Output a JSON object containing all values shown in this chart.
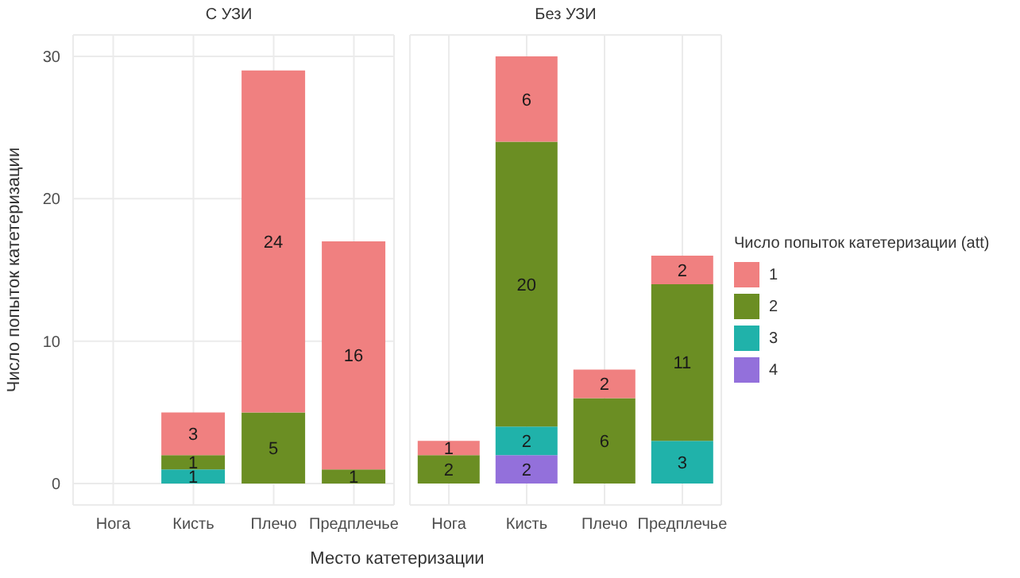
{
  "chart_data": [
    {
      "type": "bar",
      "title": "С УЗИ",
      "ylabel": "Число попыток катетеризации",
      "xlabel": "Место катетеризации",
      "categories": [
        "Нога",
        "Кисть",
        "Плечо",
        "Предплечье"
      ],
      "stacked": true,
      "data_labels": true,
      "grid": true,
      "ylim": [
        -1.5,
        31.5
      ],
      "yticks": [
        0,
        10,
        20,
        30
      ],
      "series": [
        {
          "color": "#20b2aa",
          "values": [
            null,
            1,
            null,
            null
          ]
        },
        {
          "color": "#6b8e23",
          "values": [
            null,
            1,
            5,
            1
          ]
        },
        {
          "color": "#f08080",
          "values": [
            null,
            3,
            24,
            16
          ]
        }
      ]
    },
    {
      "type": "bar",
      "title": "Без УЗИ",
      "categories": [
        "Нога",
        "Кисть",
        "Плечо",
        "Предплечье"
      ],
      "stacked": true,
      "data_labels": true,
      "grid": true,
      "ylim": [
        -1.5,
        31.5
      ],
      "yticks": [
        0,
        10,
        20,
        30
      ],
      "tick_labels": "x",
      "legend": "right",
      "legend_title": "Число попыток катетеризации (att)",
      "series": [
        {
          "name": "4",
          "color": "#9370db",
          "values": [
            null,
            2,
            null,
            null
          ]
        },
        {
          "name": "3",
          "color": "#20b2aa",
          "values": [
            null,
            2,
            null,
            3
          ]
        },
        {
          "name": "2",
          "color": "#6b8e23",
          "values": [
            2,
            20,
            6,
            11
          ]
        },
        {
          "name": "1",
          "color": "#f08080",
          "values": [
            1,
            6,
            2,
            2
          ]
        }
      ]
    }
  ]
}
